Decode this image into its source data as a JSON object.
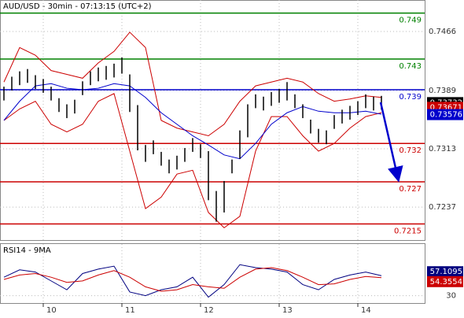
{
  "chart_data": [
    {
      "type": "ohlc",
      "title": "AUD/USD - 30min - 07:13:15 (UTC+2)",
      "x": [
        9.5,
        9.6,
        9.7,
        9.8,
        9.9,
        10.0,
        10.1,
        10.2,
        10.3,
        10.4,
        10.5,
        10.6,
        10.7,
        10.8,
        10.9,
        11.0,
        11.1,
        11.2,
        11.3,
        11.4,
        11.5,
        11.6,
        11.7,
        11.8,
        11.9,
        12.0,
        12.1,
        12.2,
        12.3,
        12.4,
        12.5,
        12.6,
        12.7,
        12.8,
        12.9,
        13.0,
        13.1,
        13.2,
        13.3,
        13.4,
        13.5,
        13.6,
        13.7,
        13.8,
        13.9,
        14.0,
        14.1,
        14.2,
        14.3
      ],
      "high": [
        0.7394,
        0.7407,
        0.7414,
        0.7417,
        0.7409,
        0.7404,
        0.7394,
        0.7379,
        0.7371,
        0.7377,
        0.7401,
        0.7414,
        0.7419,
        0.7421,
        0.7424,
        0.7432,
        0.741,
        0.737,
        0.7318,
        0.7324,
        0.7309,
        0.7299,
        0.7304,
        0.7314,
        0.7327,
        0.7319,
        0.731,
        0.7258,
        0.7271,
        0.7299,
        0.7337,
        0.7371,
        0.7384,
        0.7381,
        0.7387,
        0.7391,
        0.74,
        0.7384,
        0.7371,
        0.7351,
        0.7339,
        0.7337,
        0.7357,
        0.7364,
        0.7369,
        0.7375,
        0.7384,
        0.7381,
        0.7382
      ],
      "low": [
        0.7376,
        0.7389,
        0.7396,
        0.7399,
        0.7391,
        0.7386,
        0.7376,
        0.7361,
        0.7353,
        0.7359,
        0.7383,
        0.7396,
        0.7401,
        0.7403,
        0.7406,
        0.7411,
        0.7361,
        0.7311,
        0.7296,
        0.7306,
        0.7291,
        0.7281,
        0.7286,
        0.7296,
        0.7309,
        0.7301,
        0.7246,
        0.7218,
        0.723,
        0.7281,
        0.73,
        0.7328,
        0.7366,
        0.7363,
        0.7369,
        0.7373,
        0.7376,
        0.7366,
        0.7353,
        0.7333,
        0.7321,
        0.7319,
        0.7339,
        0.7346,
        0.7351,
        0.7357,
        0.7366,
        0.7363,
        0.7364
      ],
      "color": "#000000",
      "series": [
        {
          "color": "#cc0000",
          "x": [
            9.5,
            9.7,
            9.9,
            10.1,
            10.3,
            10.5,
            10.7,
            10.9,
            11.1,
            11.3,
            11.5,
            11.7,
            11.9,
            12.1,
            12.3,
            12.5,
            12.7,
            12.9,
            13.1,
            13.3,
            13.5,
            13.7,
            13.9,
            14.1,
            14.3
          ],
          "values": [
            0.74,
            0.7445,
            0.7435,
            0.7415,
            0.741,
            0.7405,
            0.7425,
            0.744,
            0.7465,
            0.7445,
            0.735,
            0.734,
            0.7335,
            0.733,
            0.7345,
            0.7375,
            0.7395,
            0.74,
            0.7405,
            0.74,
            0.7385,
            0.7375,
            0.7378,
            0.7382,
            0.738
          ]
        },
        {
          "color": "#cc0000",
          "x": [
            9.5,
            9.7,
            9.9,
            10.1,
            10.3,
            10.5,
            10.7,
            10.9,
            11.1,
            11.3,
            11.5,
            11.7,
            11.9,
            12.1,
            12.3,
            12.5,
            12.7,
            12.9,
            13.1,
            13.3,
            13.5,
            13.7,
            13.9,
            14.1,
            14.3
          ],
          "values": [
            0.735,
            0.7365,
            0.7375,
            0.7345,
            0.7335,
            0.7345,
            0.7375,
            0.7385,
            0.731,
            0.7235,
            0.725,
            0.728,
            0.7285,
            0.723,
            0.721,
            0.7225,
            0.731,
            0.7355,
            0.7355,
            0.733,
            0.731,
            0.732,
            0.734,
            0.7355,
            0.736
          ]
        },
        {
          "color": "#0000cc",
          "x": [
            9.5,
            9.7,
            9.9,
            10.1,
            10.3,
            10.5,
            10.7,
            10.9,
            11.1,
            11.3,
            11.5,
            11.7,
            11.9,
            12.1,
            12.3,
            12.5,
            12.7,
            12.9,
            13.1,
            13.3,
            13.5,
            13.7,
            13.9,
            14.1,
            14.3
          ],
          "values": [
            0.735,
            0.7375,
            0.7395,
            0.7398,
            0.7392,
            0.739,
            0.7392,
            0.7398,
            0.7395,
            0.738,
            0.736,
            0.7345,
            0.733,
            0.7318,
            0.7305,
            0.73,
            0.732,
            0.7345,
            0.736,
            0.7368,
            0.7362,
            0.736,
            0.736,
            0.7362,
            0.7358
          ]
        }
      ],
      "levels": [
        {
          "value": 0.749,
          "color": "#008000"
        },
        {
          "value": 0.743,
          "color": "#008000"
        },
        {
          "value": 0.739,
          "color": "#0000cc"
        },
        {
          "value": 0.732,
          "color": "#cc0000"
        },
        {
          "value": 0.727,
          "color": "#cc0000"
        },
        {
          "value": 0.7215,
          "color": "#cc0000"
        }
      ],
      "price_markers": [
        {
          "value": 0.73732,
          "color": "#000000"
        },
        {
          "value": 0.73671,
          "color": "#cc0000"
        },
        {
          "value": 0.73576,
          "color": "#0000cc"
        }
      ],
      "xlim": [
        9.45,
        14.85
      ],
      "xticks": [
        10,
        11,
        12,
        13,
        14
      ],
      "ylim": [
        0.7194,
        0.7507
      ],
      "yticks": [
        0.7237,
        0.7313,
        0.7389,
        0.7466
      ],
      "grid": true
    },
    {
      "type": "line",
      "title": "RSI14 - 9MA",
      "x": [
        9.5,
        9.7,
        9.9,
        10.1,
        10.3,
        10.5,
        10.7,
        10.9,
        11.1,
        11.3,
        11.5,
        11.7,
        11.9,
        12.1,
        12.3,
        12.5,
        12.7,
        12.9,
        13.1,
        13.3,
        13.5,
        13.7,
        13.9,
        14.1,
        14.3
      ],
      "series": [
        {
          "color": "#000080",
          "values": [
            55,
            65,
            62,
            50,
            38,
            60,
            66,
            70,
            35,
            30,
            38,
            42,
            55,
            28,
            45,
            72,
            68,
            66,
            62,
            45,
            38,
            52,
            58,
            62,
            57.1095
          ]
        },
        {
          "color": "#cc0000",
          "values": [
            52,
            58,
            60,
            55,
            48,
            50,
            58,
            64,
            55,
            42,
            36,
            38,
            45,
            42,
            40,
            55,
            66,
            68,
            64,
            55,
            45,
            46,
            52,
            56,
            54.3554
          ]
        }
      ],
      "xlim": [
        9.45,
        14.85
      ],
      "ylim": [
        20,
        100
      ],
      "yticks": [
        30
      ],
      "grid": true
    }
  ]
}
